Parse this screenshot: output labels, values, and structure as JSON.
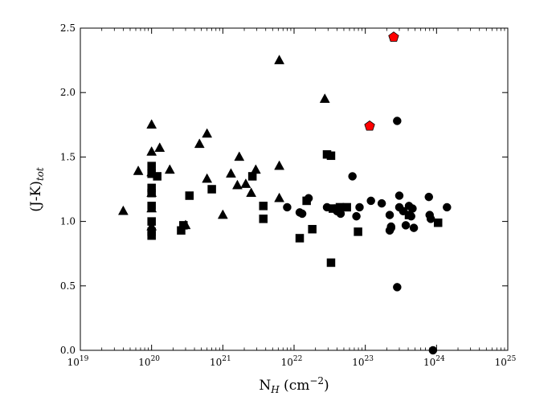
{
  "chart_data": {
    "type": "scatter",
    "xscale": "log",
    "xlim": [
      1e+19,
      1e+25
    ],
    "ylim": [
      0.0,
      2.5
    ],
    "grid": false,
    "legend": "none",
    "xlabel": {
      "base": "N",
      "sub": "H",
      "unit": " (cm",
      "exp": "−2",
      "close": ")"
    },
    "ylabel": {
      "base": "(J-K)",
      "sub": "tot"
    },
    "x_tick_labels": [
      {
        "value": 1e+19,
        "base": "10",
        "exp": "19"
      },
      {
        "value": 1e+20,
        "base": "10",
        "exp": "20"
      },
      {
        "value": 1e+21,
        "base": "10",
        "exp": "21"
      },
      {
        "value": 1e+22,
        "base": "10",
        "exp": "22"
      },
      {
        "value": 1e+23,
        "base": "10",
        "exp": "23"
      },
      {
        "value": 1e+24,
        "base": "10",
        "exp": "24"
      },
      {
        "value": 1e+25,
        "base": "10",
        "exp": "25"
      }
    ],
    "y_tick_labels": [
      "0.0",
      "0.5",
      "1.0",
      "1.5",
      "2.0",
      "2.5"
    ],
    "y_tick_values": [
      0.0,
      0.5,
      1.0,
      1.5,
      2.0,
      2.5
    ],
    "series": [
      {
        "marker": "triangle",
        "color": "#000000",
        "points": [
          [
            4e+19,
            1.08
          ],
          [
            6.5e+19,
            1.39
          ],
          [
            1e+20,
            1.75
          ],
          [
            1e+20,
            1.54
          ],
          [
            1e+20,
            1.38
          ],
          [
            1e+20,
            1.22
          ],
          [
            1e+20,
            1.1
          ],
          [
            1e+20,
            0.96
          ],
          [
            1.3e+20,
            1.57
          ],
          [
            1.8e+20,
            1.4
          ],
          [
            3e+20,
            0.97
          ],
          [
            4.7e+20,
            1.6
          ],
          [
            6e+20,
            1.68
          ],
          [
            6e+20,
            1.33
          ],
          [
            1e+21,
            1.05
          ],
          [
            1.3e+21,
            1.37
          ],
          [
            1.6e+21,
            1.28
          ],
          [
            1.7e+21,
            1.5
          ],
          [
            2.1e+21,
            1.29
          ],
          [
            2.5e+21,
            1.22
          ],
          [
            2.9e+21,
            1.4
          ],
          [
            6.2e+21,
            2.25
          ],
          [
            6.2e+21,
            1.43
          ],
          [
            6.2e+21,
            1.18
          ],
          [
            2.7e+22,
            1.95
          ]
        ]
      },
      {
        "marker": "square",
        "color": "#000000",
        "points": [
          [
            1e+20,
            1.43
          ],
          [
            1e+20,
            1.37
          ],
          [
            1e+20,
            1.26
          ],
          [
            1e+20,
            1.22
          ],
          [
            1e+20,
            1.12
          ],
          [
            1e+20,
            1.0
          ],
          [
            1e+20,
            0.92
          ],
          [
            1e+20,
            0.89
          ],
          [
            1.2e+20,
            1.35
          ],
          [
            2.6e+20,
            0.93
          ],
          [
            2.8e+20,
            0.97
          ],
          [
            3.4e+20,
            1.2
          ],
          [
            7e+20,
            1.25
          ],
          [
            2.6e+21,
            1.35
          ],
          [
            3.7e+21,
            1.12
          ],
          [
            3.7e+21,
            1.02
          ],
          [
            1.2e+22,
            0.87
          ],
          [
            1.5e+22,
            1.16
          ],
          [
            1.8e+22,
            0.94
          ],
          [
            2.9e+22,
            1.52
          ],
          [
            3.3e+22,
            1.51
          ],
          [
            3.3e+22,
            0.68
          ],
          [
            3.5e+22,
            1.1
          ],
          [
            4.4e+22,
            1.11
          ],
          [
            5.5e+22,
            1.11
          ],
          [
            7.9e+22,
            0.92
          ],
          [
            4.1e+23,
            1.05
          ],
          [
            1.05e+24,
            0.99
          ]
        ]
      },
      {
        "marker": "circle",
        "color": "#000000",
        "points": [
          [
            8e+21,
            1.11
          ],
          [
            1.2e+22,
            1.07
          ],
          [
            1.3e+22,
            1.06
          ],
          [
            1.6e+22,
            1.18
          ],
          [
            2.9e+22,
            1.11
          ],
          [
            3.7e+22,
            1.1
          ],
          [
            4e+22,
            1.08
          ],
          [
            4.5e+22,
            1.06
          ],
          [
            6.6e+22,
            1.35
          ],
          [
            7.5e+22,
            1.04
          ],
          [
            8.3e+22,
            1.11
          ],
          [
            1.2e+23,
            1.16
          ],
          [
            1.7e+23,
            1.14
          ],
          [
            2.2e+23,
            1.05
          ],
          [
            2.2e+23,
            0.93
          ],
          [
            2.3e+23,
            0.96
          ],
          [
            2.3e+23,
            0.95
          ],
          [
            2.8e+23,
            1.78
          ],
          [
            3e+23,
            1.2
          ],
          [
            3e+23,
            1.11
          ],
          [
            2.8e+23,
            0.49
          ],
          [
            3.4e+23,
            1.08
          ],
          [
            3.7e+23,
            0.97
          ],
          [
            4.1e+23,
            1.12
          ],
          [
            4.4e+23,
            1.04
          ],
          [
            4.6e+23,
            1.1
          ],
          [
            4.8e+23,
            0.95
          ],
          [
            7.8e+23,
            1.19
          ],
          [
            8e+23,
            1.05
          ],
          [
            8.3e+23,
            1.02
          ],
          [
            8.9e+23,
            0.0
          ],
          [
            1.4e+24,
            1.11
          ]
        ]
      },
      {
        "marker": "pentagon",
        "color": "#ff0000",
        "points": [
          [
            1.15e+23,
            1.74
          ],
          [
            2.5e+23,
            2.43
          ]
        ]
      }
    ]
  }
}
